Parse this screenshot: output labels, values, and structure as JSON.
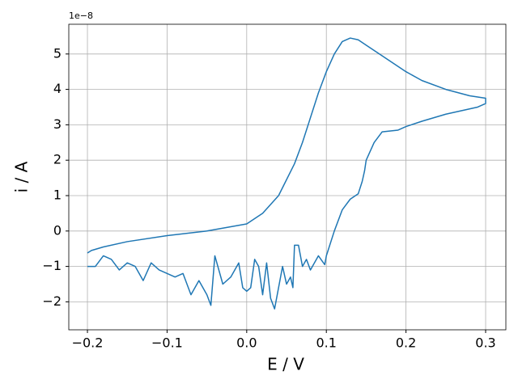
{
  "chart_data": {
    "type": "line",
    "x_label": "E / V",
    "y_label": "i / A",
    "offset_label": "1e−8",
    "x": [
      -0.2,
      -0.195,
      -0.18,
      -0.15,
      -0.1,
      -0.05,
      0,
      0.02,
      0.04,
      0.06,
      0.07,
      0.08,
      0.09,
      0.1,
      0.11,
      0.12,
      0.13,
      0.14,
      0.15,
      0.17,
      0.2,
      0.22,
      0.25,
      0.28,
      0.3,
      0.3,
      0.29,
      0.25,
      0.22,
      0.2,
      0.19,
      0.17,
      0.16,
      0.15,
      0.148,
      0.145,
      0.14,
      0.13,
      0.12,
      0.11,
      0.1,
      0.098,
      0.09,
      0.08,
      0.075,
      0.07,
      0.065,
      0.06,
      0.058,
      0.055,
      0.05,
      0.045,
      0.04,
      0.035,
      0.03,
      0.025,
      0.02,
      0.015,
      0.01,
      0.005,
      0,
      -0.005,
      -0.01,
      -0.02,
      -0.03,
      -0.04,
      -0.045,
      -0.05,
      -0.06,
      -0.07,
      -0.08,
      -0.09,
      -0.1,
      -0.11,
      -0.12,
      -0.13,
      -0.14,
      -0.15,
      -0.16,
      -0.17,
      -0.18,
      -0.19,
      -0.2
    ],
    "series": [
      {
        "color": "#1f77b4",
        "values": [
          -0.62,
          -0.55,
          -0.45,
          -0.3,
          -0.13,
          0,
          0.2,
          0.5,
          1,
          1.9,
          2.5,
          3.2,
          3.9,
          4.5,
          5,
          5.35,
          5.45,
          5.4,
          5.25,
          4.95,
          4.5,
          4.25,
          4,
          3.82,
          3.75,
          3.6,
          3.5,
          3.3,
          3.1,
          2.95,
          2.85,
          2.8,
          2.5,
          2,
          1.7,
          1.4,
          1.05,
          0.9,
          0.6,
          0,
          -0.7,
          -0.95,
          -0.7,
          -1.1,
          -0.8,
          -1,
          -0.4,
          -0.4,
          -1.6,
          -1.3,
          -1.5,
          -1,
          -1.6,
          -2.2,
          -1.9,
          -0.9,
          -1.8,
          -1,
          -0.8,
          -1.6,
          -1.7,
          -1.6,
          -0.9,
          -1.3,
          -1.5,
          -0.7,
          -2.1,
          -1.8,
          -1.4,
          -1.8,
          -1.2,
          -1.3,
          -1.2,
          -1.1,
          -0.9,
          -1.4,
          -1,
          -0.9,
          -1.1,
          -0.8,
          -0.7,
          -1,
          -1
        ]
      }
    ],
    "xlim": [
      -0.2234,
      0.3254
    ],
    "ylim": [
      -2.79,
      5.84
    ],
    "xticks": [
      {
        "value": -0.2,
        "label": "−0.2"
      },
      {
        "value": -0.1,
        "label": "−0.1"
      },
      {
        "value": 0,
        "label": "0.0"
      },
      0.1,
      0.2,
      0.3
    ],
    "yticks": [
      {
        "value": -2,
        "label": "−2"
      },
      {
        "value": -1,
        "label": "−1"
      },
      0,
      1,
      2,
      3,
      4,
      5
    ],
    "grid": true
  }
}
